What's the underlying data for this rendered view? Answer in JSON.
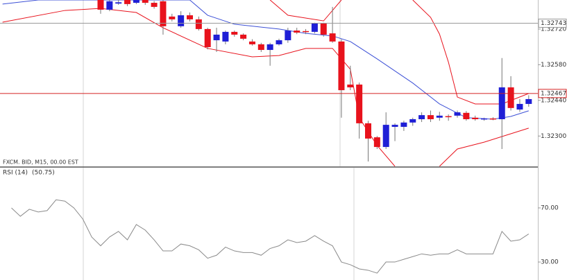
{
  "chart_data": [
    {
      "type": "candlestick",
      "title": "FXCM. BID, M15, 00.00 EST",
      "up_color": "#1f1fd6",
      "down_color": "#e8121c",
      "open": [
        1.32834,
        1.32796,
        1.3282,
        1.32834,
        1.32823,
        1.32834,
        1.32823,
        1.32829,
        1.32769,
        1.32731,
        1.32774,
        1.32758,
        1.3272,
        1.32676,
        1.32671,
        1.32709,
        1.32698,
        1.32671,
        1.3266,
        1.32638,
        1.3266,
        1.32676,
        1.32714,
        1.32712,
        1.32709,
        1.32742,
        1.32703,
        1.32671,
        1.32502,
        1.32502,
        1.3235,
        1.32295,
        1.32257,
        1.32336,
        1.32336,
        1.32353,
        1.32366,
        1.32382,
        1.32372,
        1.32378,
        1.3238,
        1.32391,
        1.32372,
        1.32366,
        1.32369,
        1.32366,
        1.32491,
        1.32404,
        1.32426
      ],
      "high": [
        1.32834,
        1.32834,
        1.32834,
        1.32834,
        1.32834,
        1.32834,
        1.3283,
        1.32834,
        1.3278,
        1.3279,
        1.32785,
        1.32769,
        1.32725,
        1.32725,
        1.32714,
        1.32714,
        1.32703,
        1.3268,
        1.32666,
        1.32666,
        1.32682,
        1.32725,
        1.32725,
        1.3272,
        1.32745,
        1.32745,
        1.32807,
        1.3268,
        1.32576,
        1.3251,
        1.3236,
        1.323,
        1.32393,
        1.3235,
        1.3236,
        1.32372,
        1.32393,
        1.324,
        1.32395,
        1.32385,
        1.324,
        1.32398,
        1.3238,
        1.32372,
        1.32374,
        1.32606,
        1.32535,
        1.32445,
        1.3246
      ],
      "low": [
        1.3278,
        1.3279,
        1.32815,
        1.3281,
        1.32818,
        1.32815,
        1.328,
        1.32698,
        1.3275,
        1.32725,
        1.3275,
        1.32714,
        1.3264,
        1.3263,
        1.3266,
        1.3269,
        1.32676,
        1.32655,
        1.3263,
        1.32576,
        1.32655,
        1.32666,
        1.327,
        1.327,
        1.32703,
        1.3269,
        1.32666,
        1.32372,
        1.3248,
        1.3229,
        1.322,
        1.32249,
        1.32249,
        1.3228,
        1.3232,
        1.3234,
        1.32355,
        1.32355,
        1.3236,
        1.3236,
        1.32372,
        1.3236,
        1.3236,
        1.3236,
        1.32362,
        1.32249,
        1.324,
        1.32395,
        1.32415
      ],
      "close": [
        1.32796,
        1.32829,
        1.32825,
        1.32818,
        1.32834,
        1.32823,
        1.32807,
        1.32731,
        1.32758,
        1.32774,
        1.32758,
        1.3272,
        1.32649,
        1.32698,
        1.32709,
        1.32698,
        1.32682,
        1.3266,
        1.32638,
        1.3266,
        1.32676,
        1.32714,
        1.32706,
        1.32709,
        1.32742,
        1.32698,
        1.32671,
        1.3248,
        1.32491,
        1.3235,
        1.3229,
        1.32257,
        1.32344,
        1.32344,
        1.32353,
        1.32366,
        1.32382,
        1.32366,
        1.3238,
        1.32374,
        1.32393,
        1.32366,
        1.32366,
        1.32369,
        1.32366,
        1.32491,
        1.3241,
        1.32426,
        1.32445
      ],
      "overlays": [
        {
          "color": "#3b4fd6",
          "x": [
            -11,
            -7,
            10,
            12,
            15,
            20,
            23,
            26,
            28,
            31,
            35,
            38,
            41,
            44,
            46,
            48
          ],
          "values": [
            1.32818,
            1.32834,
            1.32834,
            1.32774,
            1.32739,
            1.3272,
            1.32703,
            1.32693,
            1.32671,
            1.32603,
            1.32508,
            1.32426,
            1.32372,
            1.32366,
            1.32377,
            1.32399
          ]
        },
        {
          "color": "#e8121c",
          "x": [
            19,
            21,
            25,
            27,
            31,
            35,
            37,
            38,
            39,
            40,
            42,
            45,
            48
          ],
          "values": [
            1.32834,
            1.32774,
            1.32752,
            1.32834,
            null,
            1.32834,
            1.32766,
            1.327,
            1.3259,
            1.32453,
            1.32426,
            1.32426,
            1.32467
          ]
        },
        {
          "color": "#e8121c",
          "x": [
            -11,
            -4,
            0,
            4,
            7,
            12,
            17,
            20,
            23,
            26,
            28,
            29,
            31,
            33,
            35,
            38,
            40,
            43,
            48
          ],
          "values": [
            1.32747,
            1.32793,
            1.32801,
            1.32785,
            1.32725,
            1.32644,
            1.32611,
            1.32616,
            1.32644,
            1.32644,
            1.32562,
            1.32372,
            1.32263,
            1.32181,
            null,
            1.32181,
            1.32249,
            1.32276,
            1.32331
          ]
        }
      ],
      "hlines": [
        {
          "value": 1.32743,
          "label": "1.32743",
          "color": "#999999"
        },
        {
          "value": 1.32467,
          "label": "1.32467",
          "color": "#d42020"
        }
      ],
      "ylim": [
        1.32181,
        1.32834
      ],
      "yticks": [
        {
          "value": 1.3272,
          "label": "1.32720"
        },
        {
          "value": 1.3258,
          "label": "1.32580"
        },
        {
          "value": 1.3244,
          "label": "1.32440"
        },
        {
          "value": 1.323,
          "label": "1.32300"
        }
      ]
    },
    {
      "type": "line",
      "title": "RSI (14)",
      "subtitle": "(50.75)",
      "color": "#8a8a8a",
      "x": [
        -10,
        -9,
        -8,
        -7,
        -6,
        -5,
        -4,
        -3,
        -2,
        -1,
        0,
        1,
        2,
        3,
        4,
        5,
        6,
        7,
        8,
        9,
        10,
        11,
        12,
        13,
        14,
        15,
        16,
        17,
        18,
        19,
        20,
        21,
        22,
        23,
        24,
        25,
        26,
        27,
        28,
        29,
        30,
        31,
        32,
        33,
        34,
        35,
        36,
        37,
        38,
        39,
        40,
        41,
        42,
        43,
        44,
        45,
        46,
        47,
        48
      ],
      "values": [
        70,
        63.8,
        69,
        67,
        68,
        76,
        75,
        70,
        61.8,
        48.5,
        42,
        48.5,
        52.6,
        46.4,
        57.7,
        53.6,
        46.4,
        38.2,
        38.2,
        43.3,
        42,
        39,
        32.8,
        35,
        41,
        38.2,
        37,
        37,
        35,
        40,
        42,
        46.4,
        44.4,
        45.4,
        49.5,
        45.4,
        42,
        30,
        28,
        24.9,
        23.9,
        21.8,
        30,
        30,
        32,
        34,
        36,
        35,
        36,
        36,
        39,
        36,
        36,
        36,
        36,
        52.6,
        45.4,
        46.4,
        50.75
      ],
      "ylim": [
        16.7,
        99.7
      ],
      "yticks": [
        {
          "value": 70,
          "label": "70.00"
        },
        {
          "value": 30,
          "label": "30.00"
        }
      ]
    }
  ]
}
